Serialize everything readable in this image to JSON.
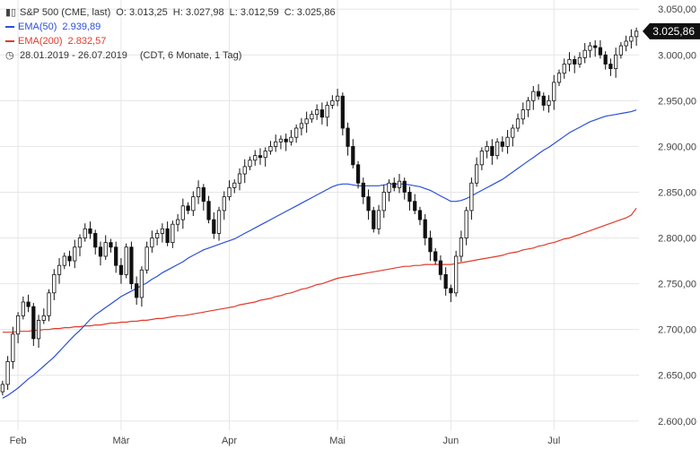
{
  "header": {
    "symbol": "S&P 500 (CME, last)",
    "ohlc": {
      "o": "O: 3.013,25",
      "h": "H: 3.027,98",
      "l": "L: 3.012,59",
      "c": "C: 3.025,86"
    },
    "ema50_label": "EMA(50)",
    "ema50_value": "2.939,89",
    "ema200_label": "EMA(200)",
    "ema200_value": "2.832,57",
    "date_range": "28.01.2019 - 26.07.2019",
    "meta": "(CDT, 6 Monate, 1 Tag)"
  },
  "colors": {
    "ema50": "#2b4fd8",
    "ema200": "#e23a2a",
    "up": "#ffffff",
    "down": "#111111",
    "grid": "#e6e6e6",
    "last_bg": "#111111"
  },
  "chart_data": {
    "type": "candlestick",
    "title": "S&P 500 (CME, last)",
    "ylim": [
      2590,
      3060
    ],
    "y_ticks": [
      2600,
      2650,
      2700,
      2750,
      2800,
      2850,
      2900,
      2950,
      3000,
      3050
    ],
    "y_tick_labels": [
      "2.600,00",
      "2.650,00",
      "2.700,00",
      "2.750,00",
      "2.800,00",
      "2.850,00",
      "2.900,00",
      "2.950,00",
      "3.000,00",
      "3.050,00"
    ],
    "x_labels": [
      {
        "label": "Feb",
        "index": 3
      },
      {
        "label": "Mär",
        "index": 23
      },
      {
        "label": "Apr",
        "index": 44
      },
      {
        "label": "Mai",
        "index": 65
      },
      {
        "label": "Jun",
        "index": 87
      },
      {
        "label": "Jul",
        "index": 107
      }
    ],
    "last_value": 3025.86,
    "last_value_label": "3.025,86",
    "close": [
      2640,
      2665,
      2695,
      2715,
      2730,
      2725,
      2690,
      2710,
      2715,
      2740,
      2760,
      2770,
      2780,
      2775,
      2790,
      2800,
      2810,
      2805,
      2790,
      2780,
      2795,
      2790,
      2770,
      2760,
      2790,
      2750,
      2735,
      2765,
      2790,
      2800,
      2805,
      2810,
      2795,
      2815,
      2820,
      2835,
      2830,
      2845,
      2855,
      2840,
      2820,
      2805,
      2830,
      2845,
      2855,
      2860,
      2870,
      2878,
      2885,
      2890,
      2888,
      2895,
      2900,
      2905,
      2908,
      2905,
      2910,
      2920,
      2925,
      2930,
      2935,
      2940,
      2932,
      2945,
      2950,
      2955,
      2920,
      2900,
      2880,
      2860,
      2845,
      2830,
      2810,
      2830,
      2850,
      2860,
      2855,
      2862,
      2850,
      2840,
      2830,
      2820,
      2800,
      2785,
      2775,
      2760,
      2745,
      2740,
      2780,
      2800,
      2830,
      2860,
      2880,
      2895,
      2900,
      2890,
      2905,
      2900,
      2910,
      2920,
      2930,
      2940,
      2950,
      2960,
      2955,
      2945,
      2950,
      2970,
      2980,
      2990,
      2995,
      2990,
      2997,
      3005,
      3010,
      3008,
      3000,
      2990,
      2985,
      3000,
      3010,
      3015,
      3020,
      3025.86
    ],
    "ema50": [
      2625,
      2628,
      2632,
      2636,
      2641,
      2646,
      2650,
      2655,
      2660,
      2665,
      2670,
      2676,
      2682,
      2688,
      2694,
      2699,
      2705,
      2711,
      2716,
      2720,
      2724,
      2728,
      2732,
      2736,
      2739,
      2742,
      2745,
      2748,
      2751,
      2755,
      2758,
      2762,
      2765,
      2768,
      2771,
      2774,
      2778,
      2781,
      2784,
      2787,
      2789,
      2791,
      2793,
      2795,
      2797,
      2799,
      2802,
      2805,
      2808,
      2811,
      2814,
      2817,
      2820,
      2823,
      2826,
      2829,
      2832,
      2835,
      2838,
      2841,
      2844,
      2847,
      2850,
      2853,
      2856,
      2858,
      2859,
      2859,
      2858,
      2857,
      2857,
      2857,
      2857,
      2857,
      2858,
      2859,
      2859,
      2859,
      2859,
      2858,
      2857,
      2856,
      2854,
      2852,
      2849,
      2846,
      2843,
      2840,
      2840,
      2841,
      2843,
      2846,
      2849,
      2852,
      2855,
      2858,
      2861,
      2864,
      2868,
      2872,
      2876,
      2880,
      2884,
      2888,
      2892,
      2896,
      2899,
      2903,
      2907,
      2911,
      2915,
      2918,
      2921,
      2924,
      2927,
      2929,
      2931,
      2933,
      2934,
      2935,
      2936,
      2937,
      2938,
      2939.89
    ],
    "ema200": [
      2697,
      2697,
      2697,
      2698,
      2698,
      2698,
      2699,
      2699,
      2700,
      2700,
      2701,
      2701,
      2702,
      2702,
      2703,
      2703,
      2704,
      2704,
      2705,
      2705,
      2706,
      2707,
      2707,
      2708,
      2708,
      2709,
      2709,
      2710,
      2710,
      2711,
      2712,
      2712,
      2713,
      2714,
      2715,
      2715,
      2716,
      2717,
      2718,
      2719,
      2720,
      2721,
      2722,
      2723,
      2724,
      2725,
      2727,
      2728,
      2729,
      2730,
      2732,
      2733,
      2734,
      2736,
      2737,
      2739,
      2740,
      2742,
      2744,
      2745,
      2747,
      2749,
      2750,
      2752,
      2754,
      2756,
      2757,
      2758,
      2759,
      2760,
      2761,
      2762,
      2763,
      2764,
      2765,
      2766,
      2767,
      2768,
      2769,
      2769,
      2770,
      2770,
      2771,
      2771,
      2771,
      2771,
      2771,
      2771,
      2772,
      2773,
      2774,
      2775,
      2776,
      2777,
      2778,
      2779,
      2780,
      2781,
      2783,
      2784,
      2785,
      2787,
      2788,
      2789,
      2791,
      2792,
      2794,
      2795,
      2797,
      2799,
      2800,
      2802,
      2804,
      2806,
      2808,
      2810,
      2812,
      2814,
      2816,
      2818,
      2820,
      2822,
      2825,
      2832.57
    ]
  }
}
